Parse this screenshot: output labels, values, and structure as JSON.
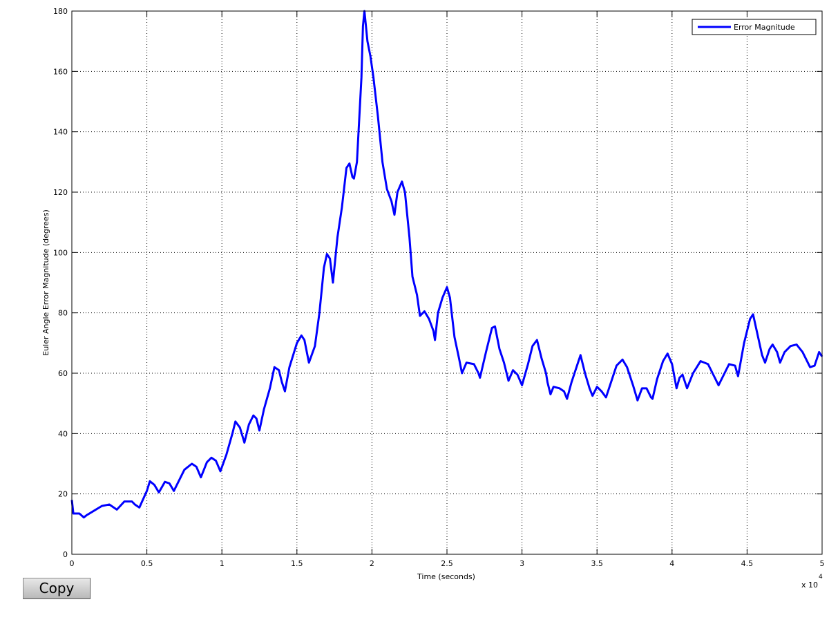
{
  "chart_data": {
    "type": "line",
    "xlabel": "Time (seconds)",
    "ylabel": "Euler Angle Error Magnitude (degrees)",
    "x_multiplier": {
      "base": "x 10",
      "exponent": "4"
    },
    "x": [
      0,
      0.01,
      0.05,
      0.08,
      0.1,
      0.15,
      0.2,
      0.25,
      0.3,
      0.35,
      0.4,
      0.42,
      0.45,
      0.5,
      0.52,
      0.55,
      0.58,
      0.62,
      0.65,
      0.68,
      0.75,
      0.8,
      0.83,
      0.86,
      0.9,
      0.93,
      0.96,
      0.99,
      1.03,
      1.07,
      1.09,
      1.12,
      1.15,
      1.18,
      1.21,
      1.23,
      1.25,
      1.28,
      1.32,
      1.35,
      1.38,
      1.4,
      1.42,
      1.45,
      1.5,
      1.53,
      1.55,
      1.58,
      1.62,
      1.65,
      1.68,
      1.7,
      1.72,
      1.74,
      1.77,
      1.8,
      1.83,
      1.85,
      1.87,
      1.88,
      1.9,
      1.93,
      1.94,
      1.95,
      1.97,
      1.99,
      2.01,
      2.04,
      2.07,
      2.1,
      2.13,
      2.15,
      2.17,
      2.2,
      2.22,
      2.25,
      2.27,
      2.3,
      2.32,
      2.35,
      2.38,
      2.41,
      2.42,
      2.44,
      2.47,
      2.5,
      2.52,
      2.55,
      2.58,
      2.6,
      2.63,
      2.68,
      2.71,
      2.72,
      2.76,
      2.8,
      2.82,
      2.85,
      2.88,
      2.91,
      2.94,
      2.97,
      3.0,
      3.04,
      3.07,
      3.1,
      3.13,
      3.16,
      3.17,
      3.19,
      3.21,
      3.25,
      3.28,
      3.3,
      3.33,
      3.37,
      3.39,
      3.42,
      3.45,
      3.47,
      3.5,
      3.53,
      3.56,
      3.6,
      3.63,
      3.67,
      3.7,
      3.74,
      3.77,
      3.8,
      3.83,
      3.86,
      3.87,
      3.9,
      3.94,
      3.97,
      4.0,
      4.03,
      4.05,
      4.07,
      4.1,
      4.14,
      4.19,
      4.24,
      4.28,
      4.31,
      4.35,
      4.38,
      4.42,
      4.44,
      4.48,
      4.52,
      4.54,
      4.56,
      4.6,
      4.62,
      4.65,
      4.67,
      4.7,
      4.72,
      4.75,
      4.79,
      4.83,
      4.87,
      4.92,
      4.95,
      4.98,
      5.0
    ],
    "series": [
      {
        "name": "Error Magnitude",
        "color": "#0000ff",
        "values": [
          18,
          13.5,
          13.5,
          12.2,
          13,
          14.5,
          16,
          16.5,
          14.8,
          17.5,
          17.5,
          16.5,
          15.5,
          21,
          24.2,
          23,
          20.5,
          24,
          23.5,
          21,
          28,
          30,
          29,
          25.5,
          30.5,
          32,
          31,
          27.5,
          33,
          40,
          44,
          42,
          37,
          43,
          46,
          45,
          41,
          48,
          55,
          62,
          61,
          57,
          54,
          62,
          70,
          72.5,
          71,
          63.5,
          69,
          80,
          95,
          99.5,
          98,
          90,
          105,
          115,
          128,
          129.5,
          125,
          124.5,
          130,
          158,
          175,
          180,
          170,
          165,
          158,
          145,
          130,
          121,
          117,
          112.5,
          120,
          123.5,
          120,
          105,
          92,
          86,
          79,
          80.5,
          78,
          74,
          71,
          80,
          85,
          88.5,
          85,
          72,
          65,
          60,
          63.5,
          63,
          60,
          58.5,
          67,
          75,
          75.5,
          68,
          63.5,
          57.5,
          61,
          59.5,
          56,
          63,
          69,
          71,
          65,
          60,
          57,
          53,
          55.5,
          55,
          54,
          51.5,
          57,
          63,
          66,
          60,
          55,
          52.5,
          55.5,
          54,
          52,
          58,
          62.5,
          64.5,
          62,
          56,
          51,
          55,
          55,
          52,
          51.5,
          58,
          64,
          66.5,
          63,
          55,
          58.5,
          59.5,
          55,
          60,
          64,
          63,
          59,
          56,
          60,
          63,
          62.5,
          59,
          70,
          78,
          79.5,
          75,
          66,
          63.5,
          68,
          69.5,
          67,
          63.5,
          67,
          69,
          69.5,
          67,
          62,
          62.5,
          67,
          65.5
        ]
      }
    ],
    "xlim": [
      0,
      5
    ],
    "xticks": [
      0,
      0.5,
      1,
      1.5,
      2,
      2.5,
      3,
      3.5,
      4,
      4.5,
      5
    ],
    "ylim": [
      0,
      180
    ],
    "yticks": [
      0,
      20,
      40,
      60,
      80,
      100,
      120,
      140,
      160,
      180
    ],
    "grid": true,
    "legend": "upper right"
  },
  "copy_button": {
    "label": "Copy"
  }
}
